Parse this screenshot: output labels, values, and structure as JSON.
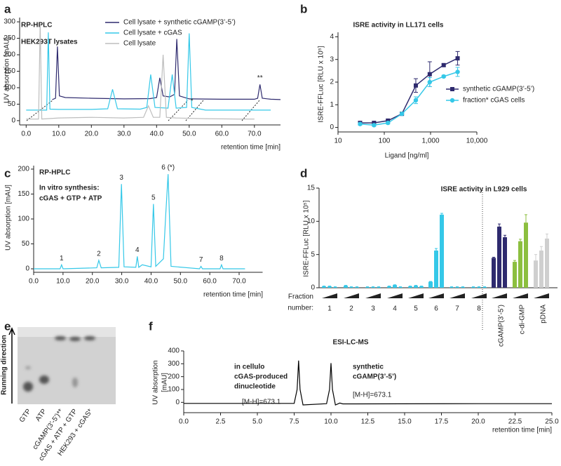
{
  "chart_data": [
    {
      "panel": "a",
      "type": "line",
      "annotations": [
        "RP-HPLC",
        "HEK293T lysates"
      ],
      "y_label": "UV absorption [mAU]",
      "x_label": "retention time [min]",
      "xlim": [
        -2,
        78
      ],
      "ylim": [
        -13,
        313
      ],
      "xticks": [
        {
          "value": 0,
          "label": "0.0"
        },
        {
          "value": 10,
          "label": "10.0"
        },
        {
          "value": 20,
          "label": "20.0"
        },
        {
          "value": 30,
          "label": "30.0"
        },
        {
          "value": 40,
          "label": "40.0"
        },
        {
          "value": 50,
          "label": "50.0"
        },
        {
          "value": 60,
          "label": "60.0"
        },
        {
          "value": 70,
          "label": "70.0"
        }
      ],
      "yticks": [
        0,
        50,
        100,
        150,
        200,
        250,
        300
      ],
      "peak_marks": [
        "*",
        "**"
      ],
      "series": [
        {
          "name": "Cell lysate + synthetic cGAMP(3’-5’)",
          "color": "#2e2a6e",
          "x": [
            8,
            9,
            9.6,
            10.2,
            12,
            20,
            30,
            38,
            40,
            41,
            42,
            44,
            45.5,
            46.2,
            47,
            50,
            60,
            70,
            71,
            71.7,
            72.4,
            75,
            78
          ],
          "values": [
            64,
            68,
            225,
            75,
            70,
            68,
            66,
            67,
            70,
            130,
            75,
            72,
            80,
            248,
            75,
            66,
            65,
            65,
            68,
            110,
            68,
            65,
            64
          ]
        },
        {
          "name": "Cell lysate + cGAS",
          "color": "#35c8e8",
          "x": [
            0,
            6.3,
            6.8,
            7.3,
            10,
            20,
            25,
            26.5,
            28,
            35,
            37,
            38.2,
            39.5,
            43.5,
            44.8,
            46,
            49.2,
            50,
            50.8,
            55,
            65,
            75
          ],
          "values": [
            32,
            32,
            268,
            35,
            34,
            34,
            36,
            95,
            36,
            35,
            40,
            140,
            40,
            38,
            140,
            38,
            40,
            265,
            40,
            32,
            32,
            32
          ]
        },
        {
          "name": "Cell lysate",
          "color": "#bdbdbd",
          "x": [
            0,
            3.8,
            4.3,
            4.8,
            10,
            20,
            30,
            36,
            37.5,
            39,
            41,
            42,
            43,
            46,
            55,
            65,
            70
          ],
          "values": [
            5,
            5,
            295,
            5,
            8,
            10,
            8,
            10,
            45,
            10,
            10,
            200,
            10,
            8,
            6,
            5,
            5
          ]
        }
      ]
    },
    {
      "panel": "b",
      "type": "line",
      "title": "ISRE activity in LL171 cells",
      "y_label": "ISRE-FFLuc [RLU x 10⁵]",
      "x_label": "Ligand [ng/ml]",
      "xscale": "log",
      "xlim": [
        10,
        10000
      ],
      "ylim": [
        -0.2,
        4.2
      ],
      "xticks": [
        10,
        100,
        {
          "value": 1000,
          "label": "1,000"
        },
        {
          "value": 10000,
          "label": "10,000"
        }
      ],
      "yticks": [
        0,
        1,
        2,
        3,
        4
      ],
      "x": [
        30,
        60,
        120,
        240,
        480,
        960,
        1920,
        3840
      ],
      "series": [
        {
          "name": "synthetic cGAMP(3’-5’)",
          "color": "#2e2a6e",
          "marker": "square",
          "values": [
            0.2,
            0.2,
            0.3,
            0.6,
            1.85,
            2.35,
            2.75,
            3.05
          ],
          "errors": [
            0.05,
            0.05,
            0.05,
            0.05,
            0.3,
            0.55,
            0.05,
            0.3
          ]
        },
        {
          "name": "fraction* cGAS cells",
          "color": "#35c8e8",
          "marker": "circle",
          "values": [
            0.15,
            0.1,
            0.2,
            0.6,
            1.2,
            2.0,
            2.25,
            2.45
          ],
          "errors": [
            0.05,
            0.05,
            0.05,
            0.05,
            0.15,
            0.2,
            0.05,
            0.2
          ]
        }
      ]
    },
    {
      "panel": "c",
      "type": "line",
      "annotations": [
        "RP-HPLC",
        "In vitro synthesis:",
        "cGAS + GTP + ATP"
      ],
      "y_label": "UV absorption [mAU]",
      "x_label": "retention time [min]",
      "xlim": [
        0,
        78
      ],
      "ylim": [
        -7,
        207
      ],
      "xticks": [
        {
          "value": 0,
          "label": "0.0"
        },
        {
          "value": 10,
          "label": "10.0"
        },
        {
          "value": 20,
          "label": "20.0"
        },
        {
          "value": 30,
          "label": "30.0"
        },
        {
          "value": 40,
          "label": "40.0"
        },
        {
          "value": 50,
          "label": "50.0"
        },
        {
          "value": 60,
          "label": "60.0"
        },
        {
          "value": 70,
          "label": "70.0"
        }
      ],
      "yticks": [
        0,
        50,
        100,
        150,
        200
      ],
      "peak_marks": [
        "1",
        "2",
        "3",
        "4",
        "5",
        "6 (*)",
        "7",
        "8"
      ],
      "series": [
        {
          "color": "#35c8e8",
          "x": [
            0,
            9,
            9.5,
            10,
            21.5,
            22.2,
            23,
            29,
            29.9,
            30.8,
            34.8,
            35.3,
            35.8,
            37,
            40,
            40.8,
            41.6,
            44.2,
            45,
            45.8,
            46.8,
            56.5,
            57,
            57.5,
            63.5,
            64,
            64.5,
            72
          ],
          "values": [
            0,
            0,
            8,
            0,
            2,
            17,
            2,
            3,
            170,
            4,
            3,
            25,
            3,
            8,
            4,
            130,
            5,
            20,
            110,
            190,
            5,
            0,
            5,
            0,
            0,
            8,
            0,
            0
          ]
        }
      ]
    },
    {
      "panel": "d",
      "type": "bar",
      "title": "ISRE activity in L929 cells",
      "y_label": "ISRE-FFLuc [RLU x 10⁵]",
      "x_label": [
        "Fraction",
        "number:"
      ],
      "ylim": [
        0,
        15
      ],
      "yticks": [
        0,
        5,
        10,
        15
      ],
      "groups": [
        {
          "label": "1",
          "color": "#35c8e8",
          "values": [
            0.2,
            0.2,
            0.1
          ],
          "errors": [
            0.05,
            0.05,
            0.05
          ]
        },
        {
          "label": "2",
          "color": "#35c8e8",
          "values": [
            0.3,
            0.1,
            0.1
          ],
          "errors": [
            0.05,
            0.05,
            0.05
          ]
        },
        {
          "label": "3",
          "color": "#35c8e8",
          "values": [
            0.1,
            0.1,
            0.1
          ],
          "errors": [
            0.05,
            0.05,
            0.05
          ]
        },
        {
          "label": "4",
          "color": "#35c8e8",
          "values": [
            0.2,
            0.4,
            0.1
          ],
          "errors": [
            0.05,
            0.05,
            0.05
          ]
        },
        {
          "label": "5",
          "color": "#35c8e8",
          "values": [
            0.2,
            0.3,
            0.2
          ],
          "errors": [
            0.05,
            0.05,
            0.05
          ]
        },
        {
          "label": "6",
          "color": "#35c8e8",
          "values": [
            0.9,
            5.6,
            11
          ],
          "errors": [
            0.05,
            0.3,
            0.2
          ]
        },
        {
          "label": "7",
          "color": "#35c8e8",
          "values": [
            0.1,
            0.1,
            0.1
          ],
          "errors": [
            0.05,
            0.05,
            0.05
          ]
        },
        {
          "label": "8",
          "color": "#35c8e8",
          "values": [
            0.1,
            0.1,
            0.1
          ],
          "errors": [
            0.05,
            0.05,
            0.05
          ]
        },
        {
          "label": "cGAMP(3’-5’)",
          "color": "#2e2a6e",
          "values": [
            4.5,
            9.2,
            7.6
          ],
          "errors": [
            0.1,
            0.4,
            0.3
          ]
        },
        {
          "label": "c-di-GMP",
          "color": "#8cbf3f",
          "values": [
            3.9,
            7.0,
            9.8
          ],
          "errors": [
            0.2,
            0.3,
            1.2
          ]
        },
        {
          "label": "pDNA",
          "color": "#cfcfcf",
          "values": [
            4.1,
            5.6,
            7.4
          ],
          "errors": [
            0.9,
            0.6,
            0.7
          ]
        }
      ]
    },
    {
      "panel": "e",
      "type": "image",
      "y_label": "Running direction",
      "lanes": [
        "GTP",
        "ATP",
        "cGAMP(3’-5’)**",
        "cGAS + ATP + GTP",
        "HEK293 + cGAS*"
      ]
    },
    {
      "panel": "f",
      "type": "line",
      "title": "ESI-LC-MS",
      "y_label": [
        "UV absorption",
        "[mAU]"
      ],
      "x_label": "retention time [min]",
      "annotations": [
        "in cellulo",
        "cGAS-produced",
        "dinucleotide",
        "[M-H]=673.1",
        "synthetic",
        "cGAMP(3’-5’)",
        "[M-H]=673.1"
      ],
      "xlim": [
        0,
        25
      ],
      "ylim": [
        -80,
        400
      ],
      "xticks": [
        {
          "value": 0,
          "label": "0.0"
        },
        {
          "value": 2.5,
          "label": "2.5"
        },
        {
          "value": 5,
          "label": "5.0"
        },
        {
          "value": 7.5,
          "label": "7.5"
        },
        {
          "value": 10,
          "label": "10.0"
        },
        {
          "value": 12.5,
          "label": "12.5"
        },
        {
          "value": 15,
          "label": "15.0"
        },
        {
          "value": 17.5,
          "label": "17.5"
        },
        {
          "value": 20,
          "label": "20.0"
        },
        {
          "value": 22.5,
          "label": "22.5"
        },
        {
          "value": 25,
          "label": "25.0"
        }
      ],
      "yticks": [
        0,
        100,
        200,
        300,
        400
      ],
      "series": [
        {
          "color": "#000000",
          "x": [
            0,
            7.5,
            7.7,
            7.8,
            7.9,
            8.1,
            9.7,
            9.9,
            10,
            10.1,
            10.3,
            10.6,
            10.8,
            20,
            25
          ],
          "values": [
            -8,
            -8,
            100,
            325,
            100,
            -20,
            -10,
            100,
            305,
            100,
            -20,
            -5,
            -12,
            -10,
            -10
          ]
        }
      ]
    }
  ]
}
